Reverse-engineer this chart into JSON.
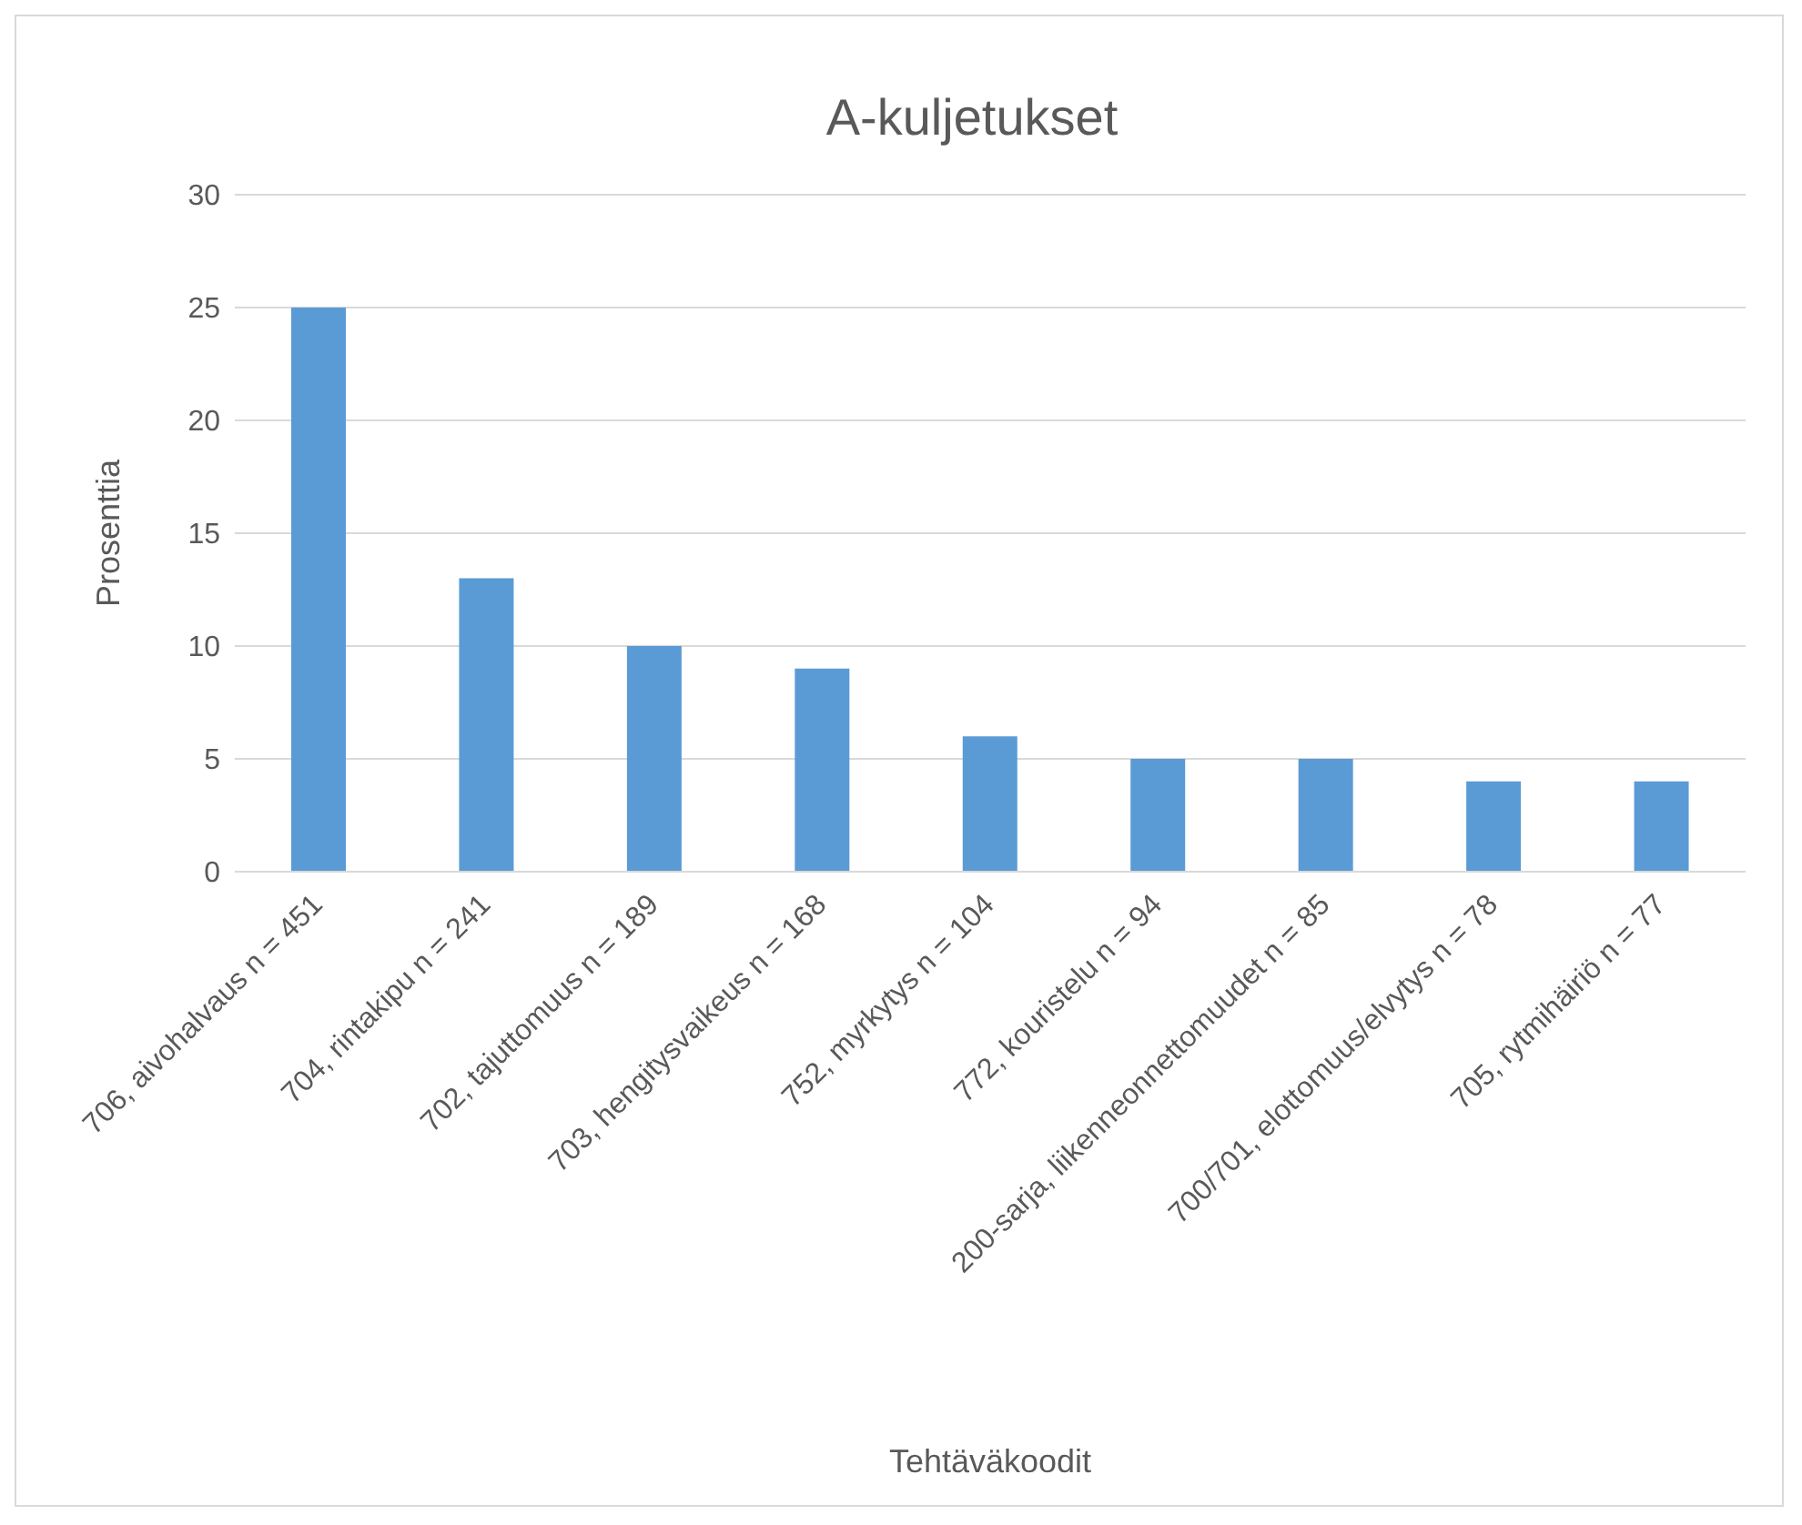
{
  "chart_data": {
    "type": "bar",
    "title": "A-kuljetukset",
    "xlabel": "Tehtäväkoodit",
    "ylabel": "Prosenttia",
    "categories": [
      "706, aivohalvaus n = 451",
      "704, rintakipu n = 241",
      "702, tajuttomuus n = 189",
      "703, hengitysvaikeus n = 168",
      "752, myrkytys n = 104",
      "772, kouristelu n = 94",
      "200-sarja, liikenneonnettomuudet n = 85",
      "700/701, elottomuus/elvytys n = 78",
      "705, rytmihäiriö n = 77"
    ],
    "values": [
      25,
      13,
      10,
      9,
      6,
      5,
      5,
      4,
      4
    ],
    "color": "#5b9bd5",
    "ylim": [
      0,
      30
    ],
    "yticks": [
      0,
      5,
      10,
      15,
      20,
      25,
      30
    ],
    "grid": "y"
  }
}
